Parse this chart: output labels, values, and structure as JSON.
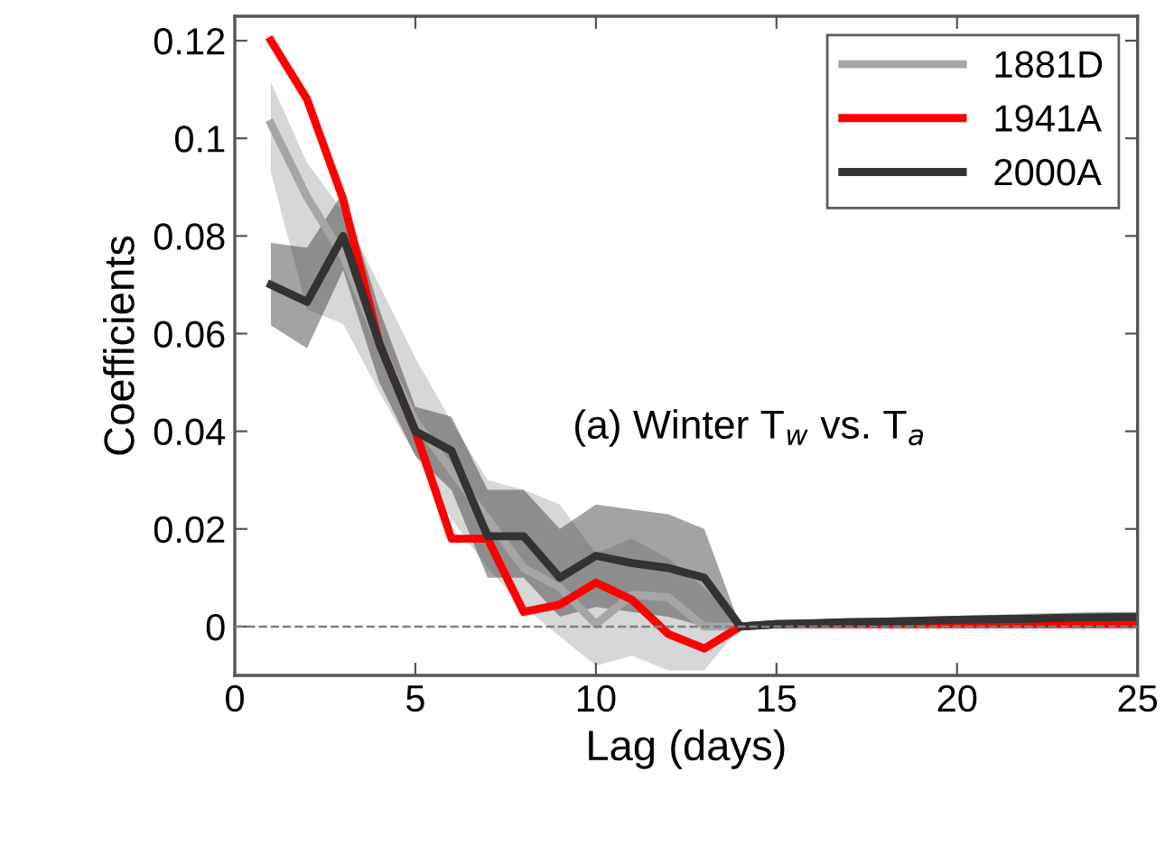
{
  "chart_data": {
    "type": "line",
    "xlabel": "Lag (days)",
    "ylabel": "Coefficients",
    "x": [
      1,
      2,
      3,
      4,
      5,
      6,
      7,
      8,
      9,
      10,
      11,
      12,
      13,
      14,
      15,
      16,
      17,
      18,
      19,
      20,
      21,
      22,
      23,
      24,
      25
    ],
    "xlim": [
      0,
      25
    ],
    "xticks": [
      0,
      5,
      10,
      15,
      20,
      25
    ],
    "ylim": [
      -0.01,
      0.125
    ],
    "yticks": [
      0,
      0.02,
      0.04,
      0.06,
      0.08,
      0.1,
      0.12
    ],
    "series": [
      {
        "name": "1881D",
        "color": "#a6a6a6",
        "values": [
          0.103,
          0.088,
          0.076,
          0.058,
          0.042,
          0.032,
          0.022,
          0.012,
          0.008,
          0.0005,
          0.0065,
          0.006,
          0.0,
          0.0,
          0.0005,
          0.0005,
          0.0005,
          0.0005,
          0.0005,
          0.001,
          0.001,
          0.001,
          0.001,
          0.001,
          0.001
        ],
        "lower": [
          0.093,
          0.065,
          0.062,
          0.048,
          0.035,
          0.022,
          0.012,
          0.004,
          -0.002,
          -0.008,
          -0.006,
          -0.009,
          -0.009,
          0.0,
          0.0,
          0.0,
          0.0,
          0.0,
          0.0,
          0.0,
          0.0,
          0.0,
          0.0,
          0.0,
          0.0
        ],
        "upper": [
          0.1115,
          0.095,
          0.085,
          0.07,
          0.055,
          0.042,
          0.03,
          0.028,
          0.025,
          0.015,
          0.018,
          0.014,
          0.008,
          0.0,
          0.001,
          0.001,
          0.001,
          0.001,
          0.001,
          0.002,
          0.002,
          0.002,
          0.002,
          0.002,
          0.002
        ]
      },
      {
        "name": "1941A",
        "color": "#ff0000",
        "values": [
          0.12,
          0.108,
          0.0875,
          0.058,
          0.04,
          0.018,
          0.018,
          0.003,
          0.0045,
          0.009,
          0.0055,
          -0.0015,
          -0.0045,
          0.0,
          0.0005,
          0.0005,
          0.0005,
          0.0005,
          0.0005,
          0.0005,
          0.0005,
          0.0005,
          0.0005,
          0.0005,
          0.0005
        ]
      },
      {
        "name": "2000A",
        "color": "#333333",
        "values": [
          0.07,
          0.0665,
          0.08,
          0.058,
          0.04,
          0.036,
          0.0185,
          0.0185,
          0.01,
          0.0145,
          0.013,
          0.012,
          0.01,
          0.0,
          0.0005,
          0.0007,
          0.0009,
          0.001,
          0.0012,
          0.0014,
          0.0015,
          0.0016,
          0.0018,
          0.0019,
          0.002
        ],
        "lower": [
          0.0617,
          0.057,
          0.073,
          0.05,
          0.035,
          0.028,
          0.01,
          0.01,
          0.002,
          0.004,
          0.003,
          0.002,
          0.0,
          0.0,
          0.0,
          0.0,
          0.0,
          0.0,
          0.0,
          0.0,
          0.0,
          0.0,
          0.0,
          0.0,
          0.0
        ],
        "upper": [
          0.0786,
          0.0776,
          0.089,
          0.065,
          0.045,
          0.043,
          0.028,
          0.028,
          0.02,
          0.025,
          0.024,
          0.023,
          0.02,
          0.0,
          0.001,
          0.0012,
          0.0015,
          0.0018,
          0.002,
          0.0022,
          0.0024,
          0.0026,
          0.0028,
          0.003,
          0.003
        ]
      }
    ],
    "ref_lines": [
      {
        "axis": "y",
        "value": 0,
        "color": "#808080",
        "line_style": "dashed"
      }
    ],
    "annotations": [
      "(a) Winter T$_{w}$ vs. T$_{a}$"
    ],
    "legend": "top right",
    "grid": false,
    "marker": "none",
    "line_style": "solid"
  }
}
